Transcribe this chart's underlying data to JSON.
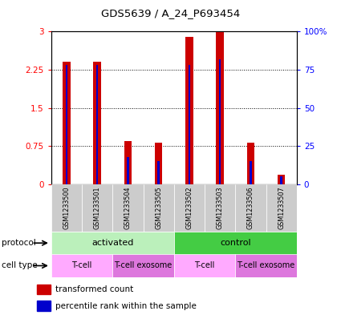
{
  "title": "GDS5639 / A_24_P693454",
  "samples": [
    "GSM1233500",
    "GSM1233501",
    "GSM1233504",
    "GSM1233505",
    "GSM1233502",
    "GSM1233503",
    "GSM1233506",
    "GSM1233507"
  ],
  "transformed_count": [
    2.4,
    2.4,
    0.85,
    0.82,
    2.9,
    3.0,
    0.82,
    0.18
  ],
  "percentile_rank_pct": [
    78,
    78,
    18,
    15,
    78,
    82,
    15,
    5
  ],
  "ylim_left": [
    0,
    3
  ],
  "ylim_right": [
    0,
    100
  ],
  "yticks_left": [
    0,
    0.75,
    1.5,
    2.25,
    3
  ],
  "yticks_right": [
    0,
    25,
    50,
    75,
    100
  ],
  "ytick_labels_left": [
    "0",
    "0.75",
    "1.5",
    "2.25",
    "3"
  ],
  "ytick_labels_right": [
    "0",
    "25",
    "50",
    "75",
    "100%"
  ],
  "bar_color_red": "#cc0000",
  "bar_color_blue": "#0000cc",
  "red_bar_width": 0.25,
  "blue_bar_width": 0.07,
  "grid_color": "#000000",
  "protocol_groups": [
    {
      "label": "activated",
      "start": 0,
      "end": 4,
      "color": "#bbf0bb"
    },
    {
      "label": "control",
      "start": 4,
      "end": 8,
      "color": "#44cc44"
    }
  ],
  "cell_type_groups": [
    {
      "label": "T-cell",
      "start": 0,
      "end": 2,
      "color": "#ffaaff"
    },
    {
      "label": "T-cell exosome",
      "start": 2,
      "end": 4,
      "color": "#dd77dd"
    },
    {
      "label": "T-cell",
      "start": 4,
      "end": 6,
      "color": "#ffaaff"
    },
    {
      "label": "T-cell exosome",
      "start": 6,
      "end": 8,
      "color": "#dd77dd"
    }
  ],
  "legend_red_label": "transformed count",
  "legend_blue_label": "percentile rank within the sample",
  "sample_bg_color": "#cccccc",
  "protocol_label": "protocol",
  "cell_type_label": "cell type",
  "fig_bg": "#ffffff"
}
